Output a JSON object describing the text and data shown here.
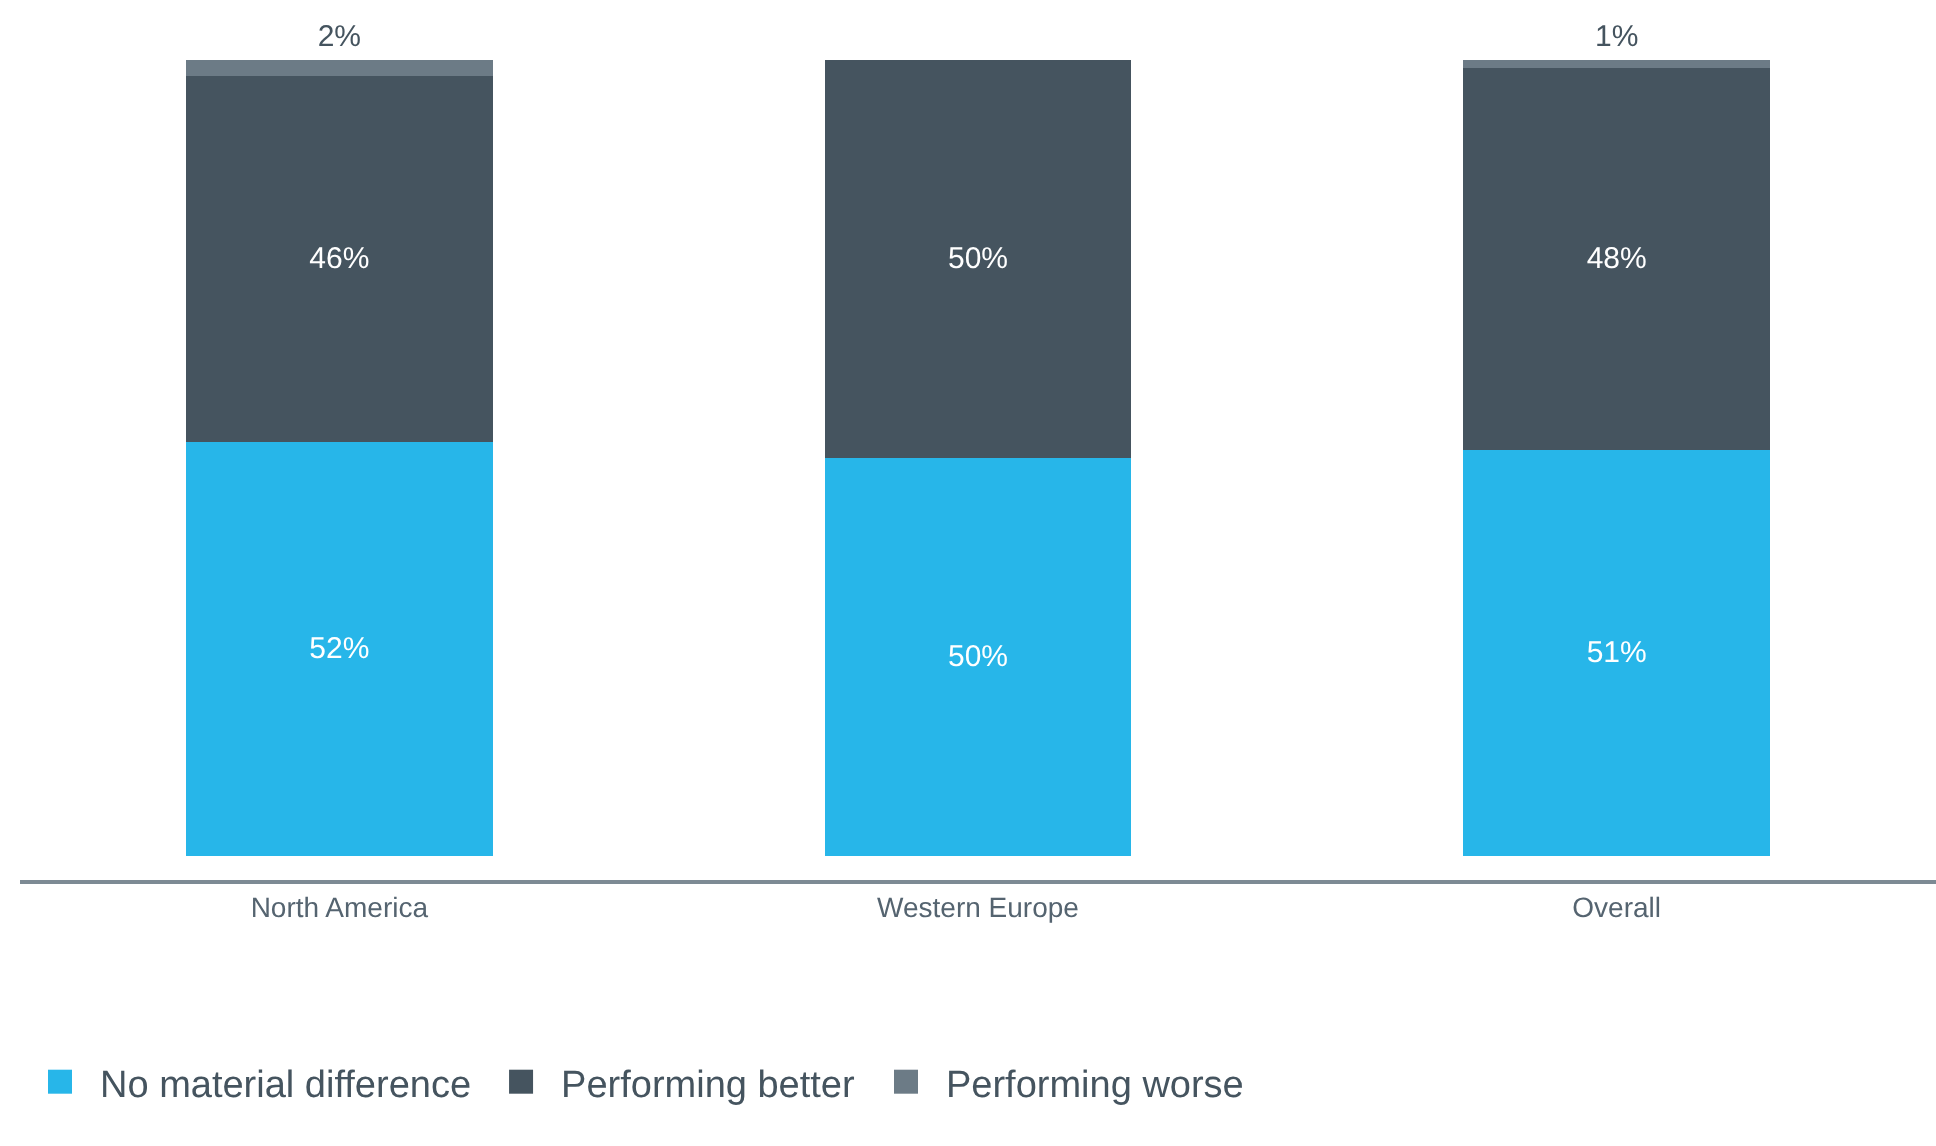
{
  "chart_data": {
    "type": "bar",
    "stacked": true,
    "categories": [
      "North America",
      "Western Europe",
      "Overall"
    ],
    "series": [
      {
        "name": "No material difference",
        "color": "#27b6e9",
        "values": [
          52,
          50,
          51
        ],
        "value_labels": [
          "52%",
          "50%",
          "51%"
        ]
      },
      {
        "name": "Performing better",
        "color": "#45545f",
        "values": [
          46,
          50,
          48
        ],
        "value_labels": [
          "46%",
          "50%",
          "48%"
        ]
      },
      {
        "name": "Performing worse",
        "color": "#6c7b86",
        "values": [
          2,
          0,
          1
        ],
        "value_labels": [
          "2%",
          null,
          "1%"
        ]
      }
    ],
    "legend": "bottom left"
  }
}
